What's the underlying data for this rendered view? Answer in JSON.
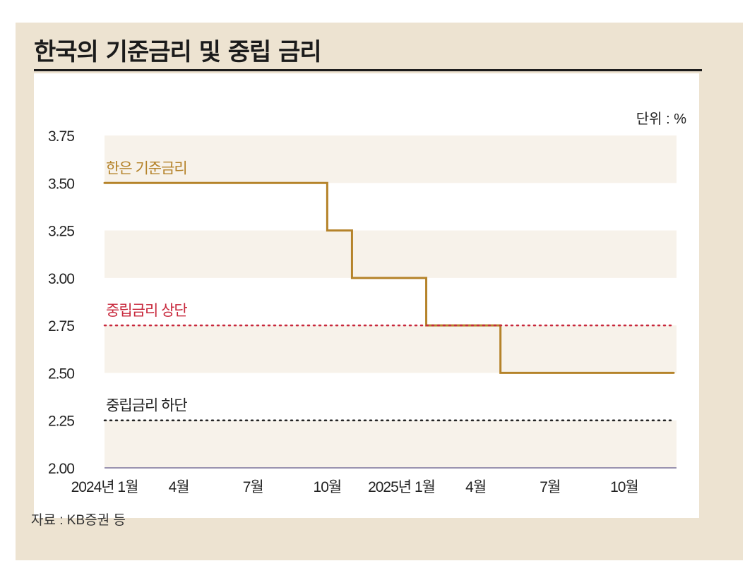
{
  "title": "한국의 기준금리 및 중립 금리",
  "unit_label": "단위 : %",
  "source": "자료 : KB증권 등",
  "colors": {
    "base_rate": "#b5832a",
    "neutral_upper": "#c8283c",
    "neutral_lower": "#222222",
    "band": "#f7f2ea",
    "card": "#ede3d1",
    "axis_bottom": "#9a93b0"
  },
  "chart_data": {
    "type": "line",
    "title": "한국의 기준금리 및 중립 금리",
    "xlabel": "",
    "ylabel": "",
    "ylim": [
      2.0,
      3.75
    ],
    "yticks": [
      "3.75",
      "3.50",
      "3.25",
      "3.00",
      "2.75",
      "2.50",
      "2.25",
      "2.00"
    ],
    "ytick_values": [
      3.75,
      3.5,
      3.25,
      3.0,
      2.75,
      2.5,
      2.25,
      2.0
    ],
    "xlim": [
      "2024-01",
      "2025-12"
    ],
    "xticks": [
      {
        "label": "2024년 1월",
        "date": "2024-01"
      },
      {
        "label": "4월",
        "date": "2024-04"
      },
      {
        "label": "7월",
        "date": "2024-07"
      },
      {
        "label": "10월",
        "date": "2024-10"
      },
      {
        "label": "2025년 1월",
        "date": "2025-01"
      },
      {
        "label": "4월",
        "date": "2025-04"
      },
      {
        "label": "7월",
        "date": "2025-07"
      },
      {
        "label": "10월",
        "date": "2025-10"
      }
    ],
    "series": [
      {
        "name": "한은 기준금리",
        "style": "step",
        "points": [
          {
            "date": "2024-01",
            "value": 3.5
          },
          {
            "date": "2024-10",
            "value": 3.25
          },
          {
            "date": "2024-11",
            "value": 3.0
          },
          {
            "date": "2025-02",
            "value": 2.75
          },
          {
            "date": "2025-05",
            "value": 2.5
          },
          {
            "date": "2025-12",
            "value": 2.5
          }
        ]
      },
      {
        "name": "중립금리 상단",
        "style": "dotted",
        "points": [
          {
            "date": "2024-01",
            "value": 2.75
          },
          {
            "date": "2025-12",
            "value": 2.75
          }
        ]
      },
      {
        "name": "중립금리 하단",
        "style": "dotted",
        "points": [
          {
            "date": "2024-01",
            "value": 2.25
          },
          {
            "date": "2025-12",
            "value": 2.25
          }
        ]
      }
    ],
    "grid": "alternating horizontal bands",
    "legend": "inline labels above each line"
  }
}
